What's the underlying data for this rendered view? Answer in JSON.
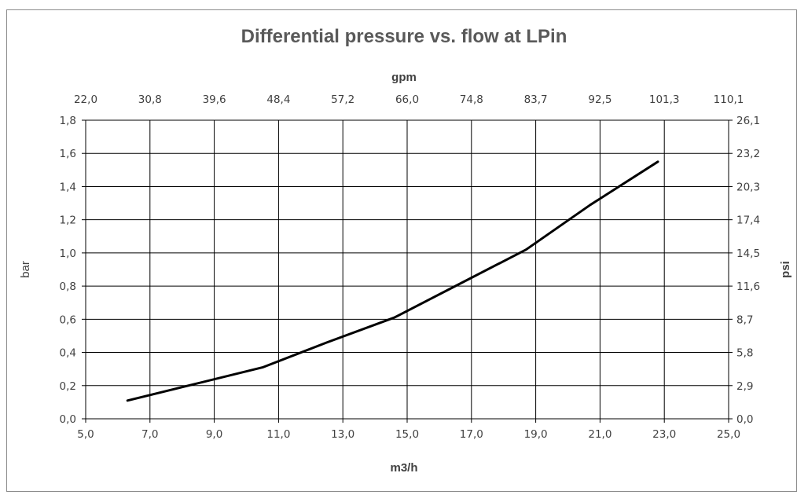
{
  "chart_data": {
    "type": "line",
    "title": "Differential pressure vs. flow at LPin",
    "xlabel": "m3/h",
    "ylabel": "bar",
    "x2label": "gpm",
    "y2label": "psi",
    "xlim": [
      5.0,
      25.0
    ],
    "ylim": [
      0.0,
      1.8
    ],
    "x_ticks": [
      "5,0",
      "7,0",
      "9,0",
      "11,0",
      "13,0",
      "15,0",
      "17,0",
      "19,0",
      "21,0",
      "23,0",
      "25,0"
    ],
    "y_ticks": [
      "0,0",
      "0,2",
      "0,4",
      "0,6",
      "0,8",
      "1,0",
      "1,2",
      "1,4",
      "1,6",
      "1,8"
    ],
    "x2_ticks": [
      "22,0",
      "30,8",
      "39,6",
      "48,4",
      "57,2",
      "66,0",
      "74,8",
      "83,7",
      "92,5",
      "101,3",
      "110,1"
    ],
    "y2_ticks": [
      "0,0",
      "2,9",
      "5,8",
      "8,7",
      "11,6",
      "14,5",
      "17,4",
      "20,3",
      "23,2",
      "26,1"
    ],
    "grid": true,
    "series": [
      {
        "x": [
          6.3,
          8.4,
          10.5,
          12.5,
          14.6,
          16.6,
          18.7,
          20.7,
          22.8
        ],
        "y": [
          0.11,
          0.21,
          0.31,
          0.46,
          0.61,
          0.81,
          1.02,
          1.29,
          1.55
        ],
        "color": "#000000"
      }
    ]
  }
}
